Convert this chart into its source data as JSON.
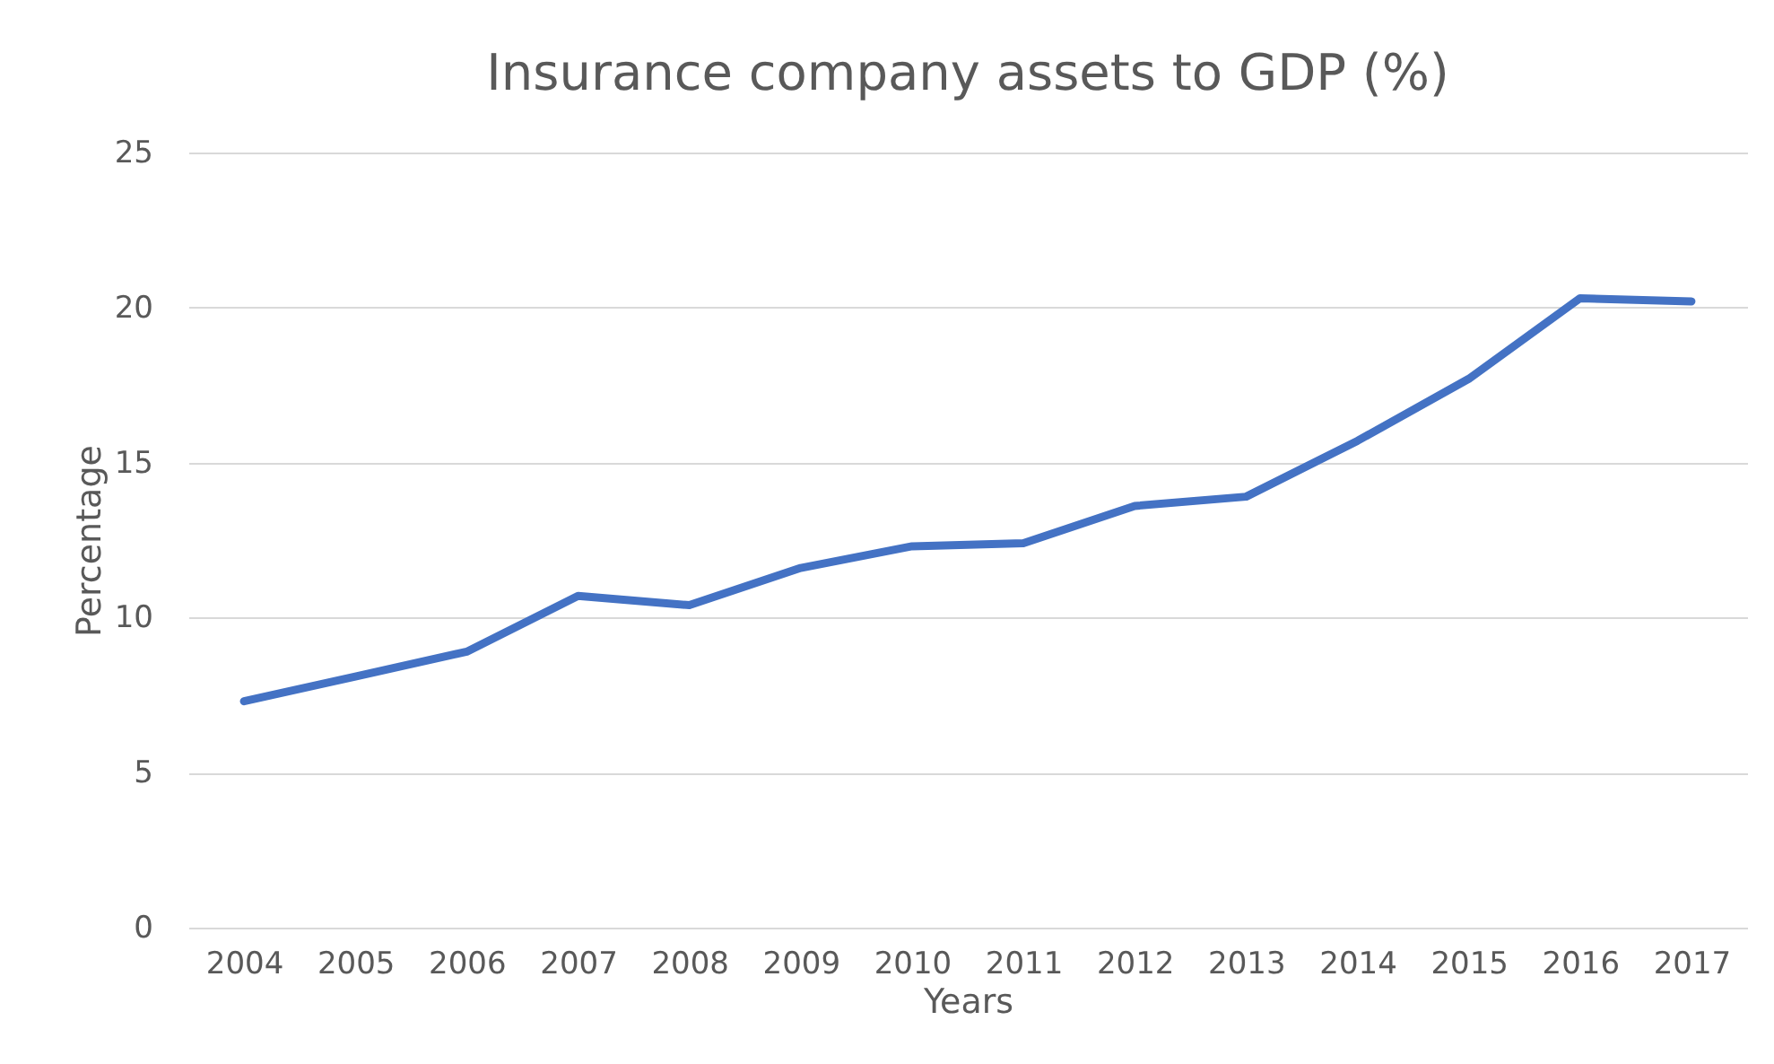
{
  "chart_data": {
    "type": "line",
    "title": "Insurance company assets to GDP (%)",
    "xlabel": "Years",
    "ylabel": "Percentage",
    "categories": [
      "2004",
      "2005",
      "2006",
      "2007",
      "2008",
      "2009",
      "2010",
      "2011",
      "2012",
      "2013",
      "2014",
      "2015",
      "2016",
      "2017"
    ],
    "series": [
      {
        "color": "#4472c4",
        "values": [
          7.3,
          8.1,
          8.9,
          10.7,
          10.4,
          11.6,
          12.3,
          12.4,
          13.6,
          13.9,
          15.7,
          17.7,
          20.3,
          20.2
        ]
      }
    ],
    "ylim": [
      0,
      25
    ],
    "yticks": [
      0,
      5,
      10,
      15,
      20,
      25
    ],
    "grid": "y",
    "legend": false,
    "marker": "none",
    "line_style": "solid"
  }
}
